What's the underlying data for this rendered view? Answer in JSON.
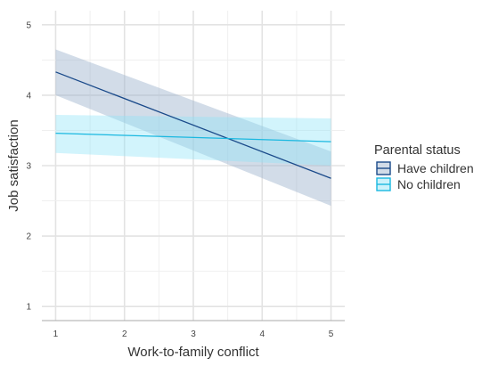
{
  "chart_data": {
    "type": "line",
    "xlabel": "Work-to-family conflict",
    "ylabel": "Job satisfaction",
    "xlim": [
      0.8,
      5.2
    ],
    "ylim": [
      0.8,
      5.2
    ],
    "x_ticks": [
      1,
      2,
      3,
      4,
      5
    ],
    "y_ticks": [
      1,
      2,
      3,
      4,
      5
    ],
    "grid": true,
    "legend": {
      "title": "Parental status",
      "placement": "right"
    },
    "series": [
      {
        "name": "Have children",
        "color": "#1a4a8a",
        "band_color": "#9bb1cc",
        "x": [
          1,
          5
        ],
        "y": [
          4.33,
          2.82
        ],
        "ci_lower": [
          4.0,
          2.43
        ],
        "ci_upper": [
          4.65,
          3.2
        ]
      },
      {
        "name": "No children",
        "color": "#1ab8e0",
        "band_color": "#8fe3f7",
        "x": [
          1,
          5
        ],
        "y": [
          3.46,
          3.34
        ],
        "ci_lower": [
          3.18,
          3.0
        ],
        "ci_upper": [
          3.72,
          3.67
        ]
      }
    ]
  }
}
